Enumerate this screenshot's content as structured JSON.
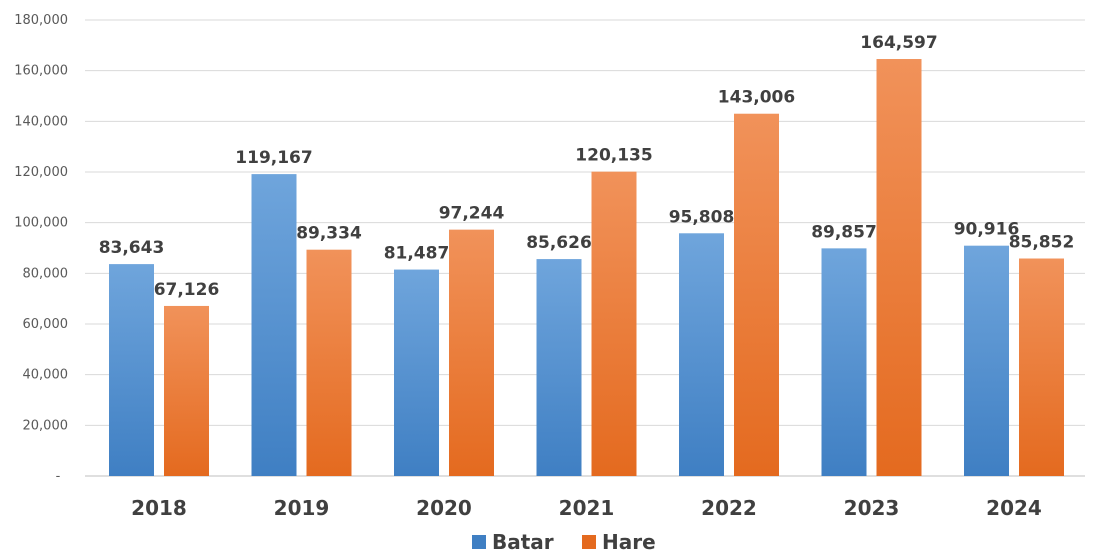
{
  "chart_data": {
    "type": "bar",
    "categories": [
      "2018",
      "2019",
      "2020",
      "2021",
      "2022",
      "2023",
      "2024"
    ],
    "series": [
      {
        "name": "Batar",
        "values": [
          83643,
          119167,
          81487,
          85626,
          95808,
          89857,
          90916
        ],
        "labels": [
          "83,643",
          "119,167",
          "81,487",
          "85,626",
          "95,808",
          "89,857",
          "90,916"
        ]
      },
      {
        "name": "Hare",
        "values": [
          67126,
          89334,
          97244,
          120135,
          143006,
          164597,
          85852
        ],
        "labels": [
          "67,126",
          "89,334",
          "97,244",
          "120,135",
          "143,006",
          "164,597",
          "85,852"
        ]
      }
    ],
    "y_ticks": [
      0,
      20000,
      40000,
      60000,
      80000,
      100000,
      120000,
      140000,
      160000,
      180000
    ],
    "y_tick_labels": [
      "-",
      "20,000",
      "40,000",
      "60,000",
      "80,000",
      "100,000",
      "120,000",
      "140,000",
      "160,000",
      "180,000"
    ],
    "ylim": [
      0,
      180000
    ],
    "title": "",
    "xlabel": "",
    "ylabel": "",
    "grid": true,
    "legend": "bottom-center",
    "colors": {
      "Batar": {
        "light": "#6fa5dc",
        "dark": "#3f7fc3"
      },
      "Hare": {
        "light": "#f1925a",
        "dark": "#e46a1f"
      },
      "grid": "#d9d9d9",
      "axis": "#bfbfbf"
    }
  }
}
